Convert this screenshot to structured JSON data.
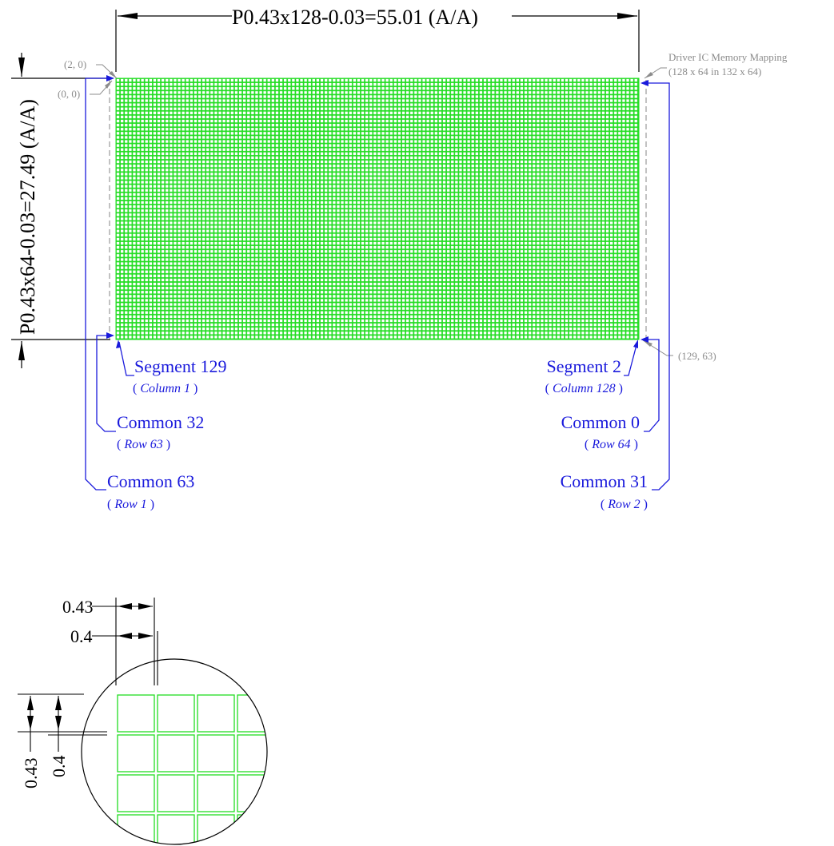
{
  "dimensions": {
    "width_label": "P0.43x128-0.03=55.01 (A/A)",
    "height_label": "P0.43x64-0.03=27.49 (A/A)"
  },
  "coords": {
    "c20": "(2, 0)",
    "c00": "(0, 0)",
    "c129_63": "(129, 63)"
  },
  "mapping": {
    "title": "Driver IC Memory Mapping",
    "subtitle": "(128 x 64 in 132 x 64)"
  },
  "labels": {
    "seg129": {
      "name": "Segment 129",
      "pre": "( ",
      "em": "Column 1",
      "post": " )"
    },
    "seg2": {
      "name": "Segment 2",
      "pre": "( ",
      "em": "Column 128",
      "post": " )"
    },
    "com32": {
      "name": "Common 32",
      "pre": "( ",
      "em": "Row 63",
      "post": " )"
    },
    "com0": {
      "name": "Common 0",
      "pre": "( ",
      "em": "Row 64",
      "post": " )"
    },
    "com63": {
      "name": "Common 63",
      "pre": "( ",
      "em": "Row 1",
      "post": " )"
    },
    "com31": {
      "name": "Common 31",
      "pre": "( ",
      "em": "Row 2",
      "post": " )"
    }
  },
  "detail": {
    "pitch": "0.43",
    "dot": "0.4",
    "pitch_v": "0.43",
    "dot_v": "0.4"
  },
  "colors": {
    "grid_green": "#22dd22",
    "label_blue": "#1a1adc",
    "note_gray": "#8c8c8c"
  }
}
